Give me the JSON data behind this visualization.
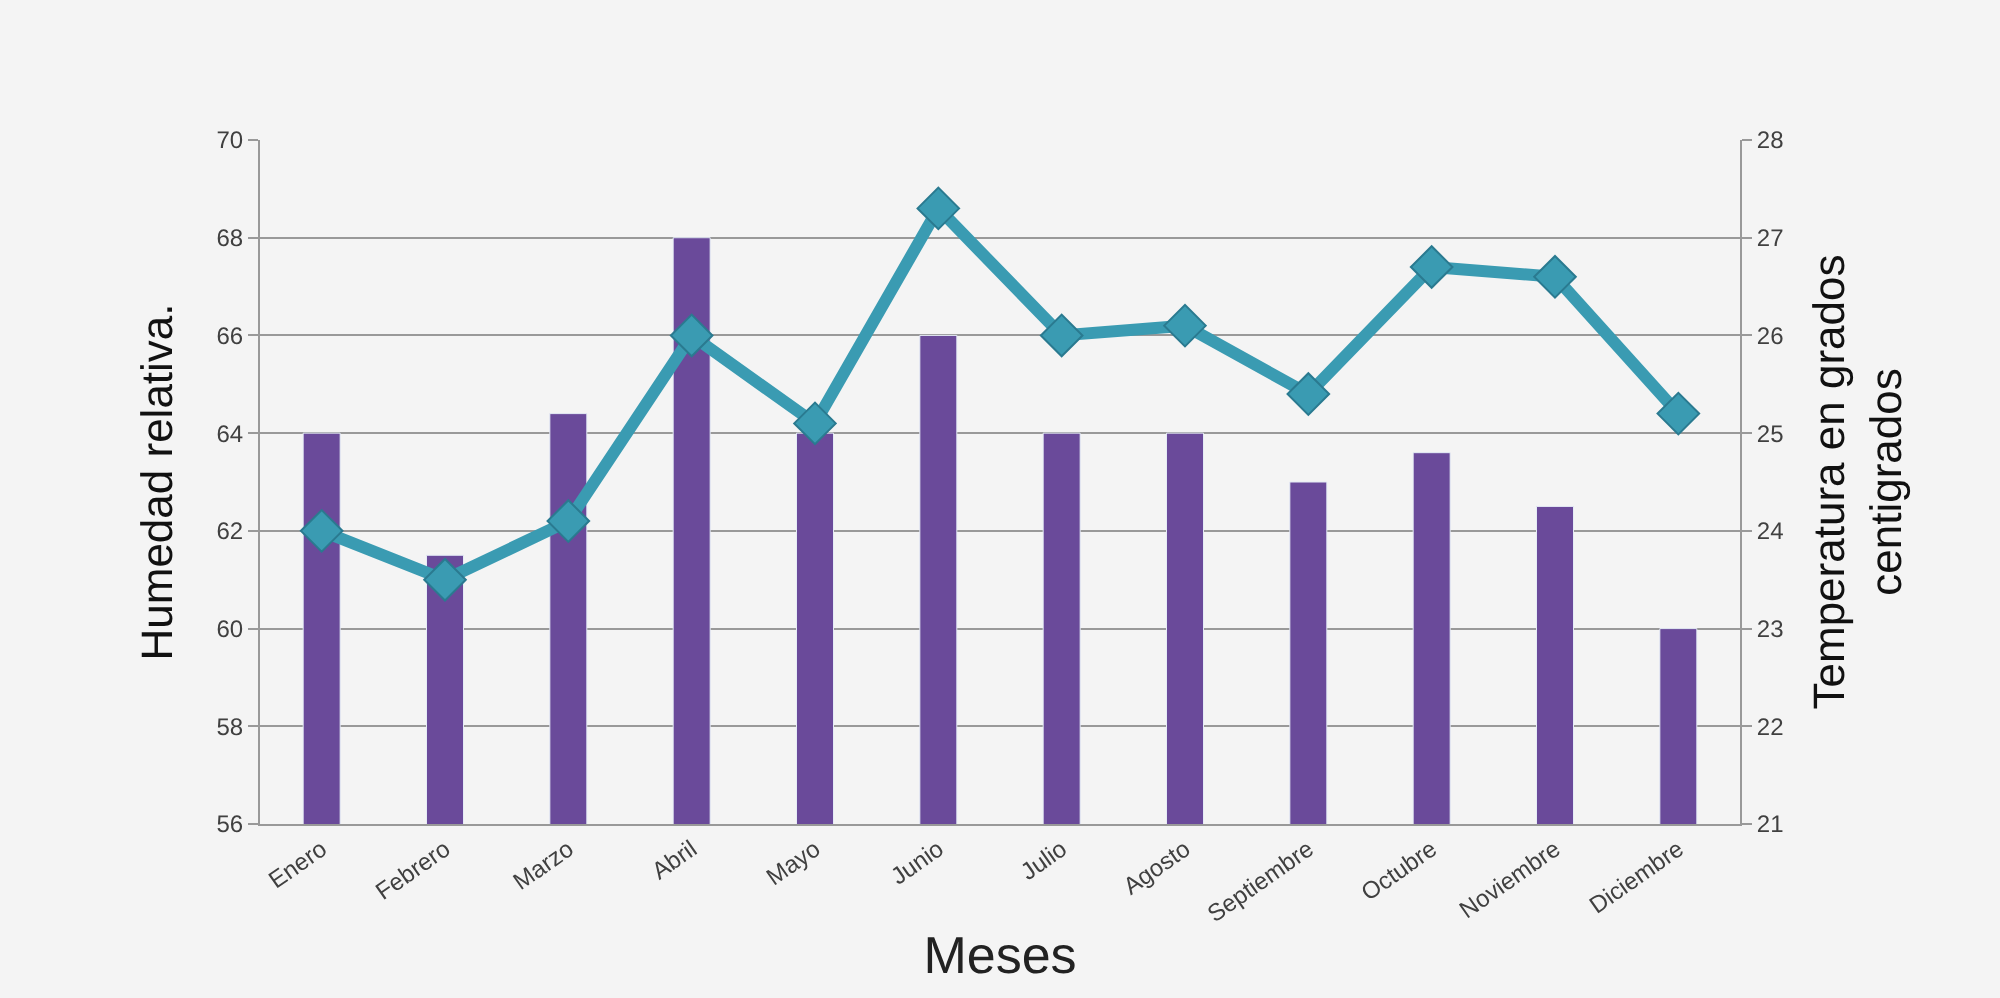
{
  "chart_data": {
    "type": "bar",
    "xlabel": "Meses",
    "ylabel": "Humedad relativa.",
    "y2label": "Temperatura en grados\ncentigrados",
    "categories": [
      "Enero",
      "Febrero",
      "Marzo",
      "Abril",
      "Mayo",
      "Junio",
      "Julio",
      "Agosto",
      "Septiembre",
      "Octubre",
      "Noviembre",
      "Diciembre"
    ],
    "series": [
      {
        "color": "#6a4a9a",
        "values": [
          64,
          61.5,
          64.4,
          68,
          64,
          66,
          64,
          64,
          63,
          63.6,
          62.5,
          60
        ]
      },
      {
        "type": "line",
        "axis": "y2",
        "color": "#3a9bb2",
        "marker": "diamond",
        "values": [
          24,
          23.5,
          24.1,
          26,
          25.1,
          27.3,
          26,
          26.1,
          25.4,
          26.7,
          26.6,
          25.2
        ]
      }
    ],
    "ylim": [
      56,
      70
    ],
    "yticks": [
      56,
      58,
      60,
      62,
      64,
      66,
      68,
      70
    ],
    "y2lim": [
      21,
      28
    ],
    "y2ticks": [
      21,
      22,
      23,
      24,
      25,
      26,
      27,
      28
    ],
    "grid": "y"
  }
}
